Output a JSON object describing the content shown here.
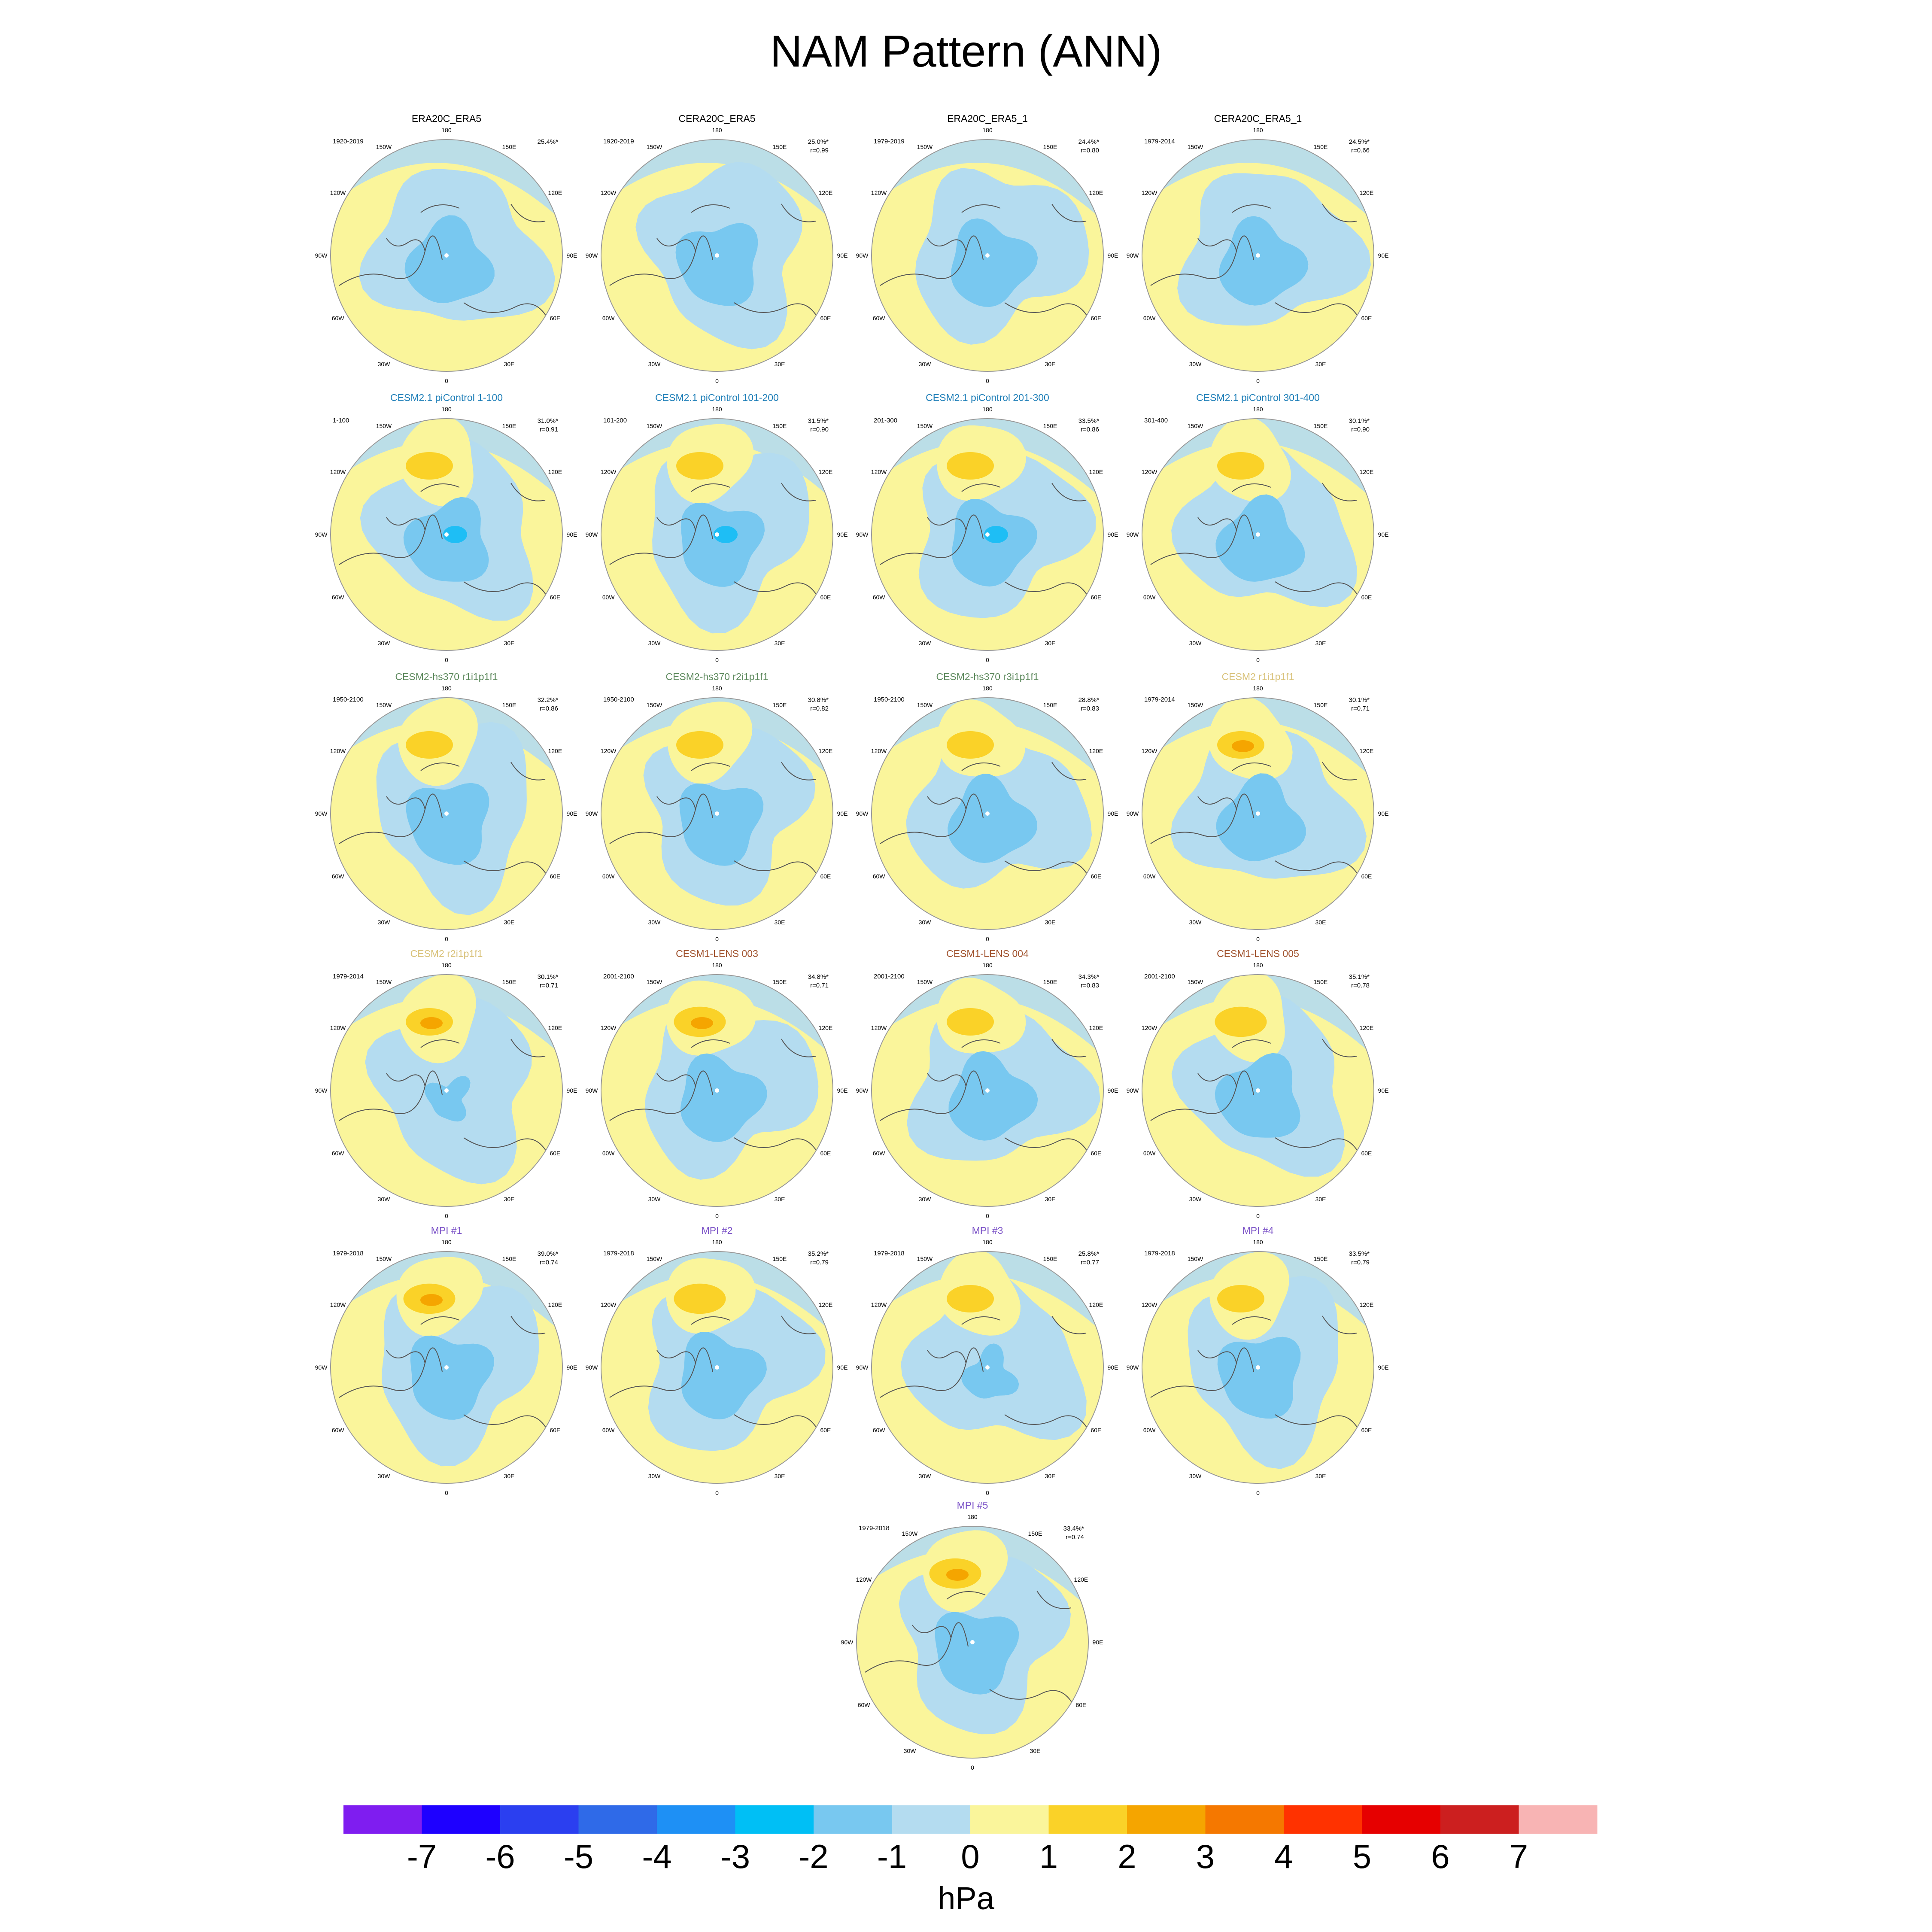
{
  "title": "NAM Pattern (ANN)",
  "colors": {
    "ocean_neg": "#b4dcf0",
    "land_pos": "#faf59b",
    "neg1": "#78c8f0",
    "neg2": "#1ebef5",
    "pos1": "#fad228",
    "pos2": "#f5a500",
    "coast": "#555555",
    "border": "#999999"
  },
  "longitude_labels": [
    "180",
    "150E",
    "120E",
    "90E",
    "60E",
    "30E",
    "0",
    "30W",
    "60W",
    "90W",
    "120W",
    "150W"
  ],
  "panels": [
    {
      "name": "ERA20C_ERA5",
      "period": "1920-2019",
      "variance": "25.4%*",
      "corr": "",
      "title_color": "#000000",
      "pos_amp": 0,
      "neg_amp": 1,
      "pos2": false,
      "neg2": false
    },
    {
      "name": "CERA20C_ERA5",
      "period": "1920-2019",
      "variance": "25.0%*",
      "corr": "r=0.99",
      "title_color": "#000000",
      "pos_amp": 0,
      "neg_amp": 1,
      "pos2": false,
      "neg2": false
    },
    {
      "name": "ERA20C_ERA5_1",
      "period": "1979-2019",
      "variance": "24.4%*",
      "corr": "r=0.80",
      "title_color": "#000000",
      "pos_amp": 0,
      "neg_amp": 1,
      "pos2": false,
      "neg2": false
    },
    {
      "name": "CERA20C_ERA5_1",
      "period": "1979-2014",
      "variance": "24.5%*",
      "corr": "r=0.66",
      "title_color": "#000000",
      "pos_amp": 0,
      "neg_amp": 1,
      "pos2": false,
      "neg2": false
    },
    {
      "name": "CESM2.1 piControl 1-100",
      "period": "1-100",
      "variance": "31.0%*",
      "corr": "r=0.91",
      "title_color": "#1f7fb8",
      "pos_amp": 1,
      "neg_amp": 1,
      "pos2": false,
      "neg2": true
    },
    {
      "name": "CESM2.1 piControl 101-200",
      "period": "101-200",
      "variance": "31.5%*",
      "corr": "r=0.90",
      "title_color": "#1f7fb8",
      "pos_amp": 1,
      "neg_amp": 1,
      "pos2": false,
      "neg2": true
    },
    {
      "name": "CESM2.1 piControl 201-300",
      "period": "201-300",
      "variance": "33.5%*",
      "corr": "r=0.86",
      "title_color": "#1f7fb8",
      "pos_amp": 1,
      "neg_amp": 1,
      "pos2": false,
      "neg2": true
    },
    {
      "name": "CESM2.1 piControl 301-400",
      "period": "301-400",
      "variance": "30.1%*",
      "corr": "r=0.90",
      "title_color": "#1f7fb8",
      "pos_amp": 1,
      "neg_amp": 1,
      "pos2": false,
      "neg2": false
    },
    {
      "name": "CESM2-hs370 r1i1p1f1",
      "period": "1950-2100",
      "variance": "32.2%*",
      "corr": "r=0.86",
      "title_color": "#5e8a5e",
      "pos_amp": 1,
      "neg_amp": 1,
      "pos2": false,
      "neg2": false
    },
    {
      "name": "CESM2-hs370 r2i1p1f1",
      "period": "1950-2100",
      "variance": "30.8%*",
      "corr": "r=0.82",
      "title_color": "#5e8a5e",
      "pos_amp": 1,
      "neg_amp": 1,
      "pos2": false,
      "neg2": false
    },
    {
      "name": "CESM2-hs370 r3i1p1f1",
      "period": "1950-2100",
      "variance": "28.8%*",
      "corr": "r=0.83",
      "title_color": "#5e8a5e",
      "pos_amp": 1,
      "neg_amp": 1,
      "pos2": false,
      "neg2": false
    },
    {
      "name": "CESM2 r1i1p1f1",
      "period": "1979-2014",
      "variance": "30.1%*",
      "corr": "r=0.71",
      "title_color": "#d9c27a",
      "pos_amp": 1,
      "neg_amp": 1,
      "pos2": true,
      "neg2": false
    },
    {
      "name": "CESM2 r2i1p1f1",
      "period": "1979-2014",
      "variance": "30.1%*",
      "corr": "r=0.71",
      "title_color": "#d9c27a",
      "pos_amp": 1,
      "neg_amp": 0.5,
      "pos2": true,
      "neg2": false
    },
    {
      "name": "CESM1-LENS 003",
      "period": "2001-2100",
      "variance": "34.8%*",
      "corr": "r=0.71",
      "title_color": "#a0522d",
      "pos_amp": 1.1,
      "neg_amp": 1,
      "pos2": true,
      "neg2": false
    },
    {
      "name": "CESM1-LENS 004",
      "period": "2001-2100",
      "variance": "34.3%*",
      "corr": "r=0.83",
      "title_color": "#a0522d",
      "pos_amp": 1,
      "neg_amp": 1,
      "pos2": false,
      "neg2": false
    },
    {
      "name": "CESM1-LENS 005",
      "period": "2001-2100",
      "variance": "35.1%*",
      "corr": "r=0.78",
      "title_color": "#a0522d",
      "pos_amp": 1.1,
      "neg_amp": 1,
      "pos2": false,
      "neg2": false
    },
    {
      "name": "MPI #1",
      "period": "1979-2018",
      "variance": "39.0%*",
      "corr": "r=0.74",
      "title_color": "#7b52c7",
      "pos_amp": 1.1,
      "neg_amp": 1,
      "pos2": true,
      "neg2": false
    },
    {
      "name": "MPI #2",
      "period": "1979-2018",
      "variance": "35.2%*",
      "corr": "r=0.79",
      "title_color": "#7b52c7",
      "pos_amp": 1.1,
      "neg_amp": 1,
      "pos2": false,
      "neg2": false
    },
    {
      "name": "MPI #3",
      "period": "1979-2018",
      "variance": "25.8%*",
      "corr": "r=0.77",
      "title_color": "#7b52c7",
      "pos_amp": 1,
      "neg_amp": 0.6,
      "pos2": false,
      "neg2": false
    },
    {
      "name": "MPI #4",
      "period": "1979-2018",
      "variance": "33.5%*",
      "corr": "r=0.79",
      "title_color": "#7b52c7",
      "pos_amp": 1,
      "neg_amp": 1,
      "pos2": false,
      "neg2": false
    },
    {
      "name": "MPI #5",
      "period": "1979-2018",
      "variance": "33.4%*",
      "corr": "r=0.74",
      "title_color": "#7b52c7",
      "pos_amp": 1.1,
      "neg_amp": 1,
      "pos2": true,
      "neg2": false
    }
  ],
  "colorbar": {
    "ticks": [
      "-7",
      "-6",
      "-5",
      "-4",
      "-3",
      "-2",
      "-1",
      "0",
      "1",
      "2",
      "3",
      "4",
      "5",
      "6",
      "7"
    ],
    "colors": [
      "#7f1df0",
      "#1e00ff",
      "#2b3ff0",
      "#2f6ae8",
      "#1e90f5",
      "#00bff5",
      "#78c8f0",
      "#b4dcf0",
      "#faf59b",
      "#fad228",
      "#f5a500",
      "#f57800",
      "#ff3200",
      "#e60000",
      "#cc1f1f",
      "#f8b4b4"
    ],
    "units": "hPa"
  }
}
